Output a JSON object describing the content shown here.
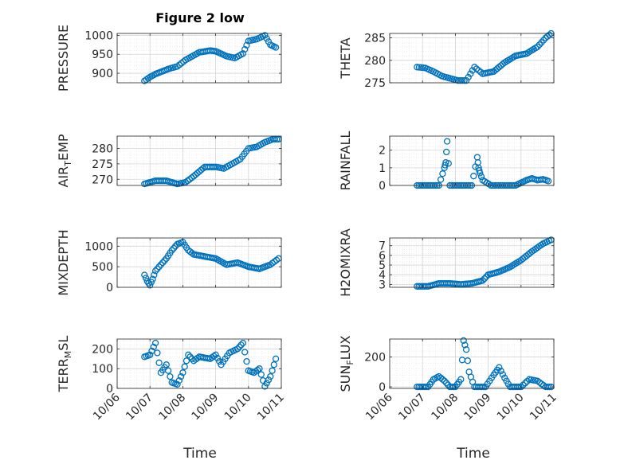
{
  "figure": {
    "title": "Figure 2 low",
    "xlabel": "Time",
    "marker_color": "#0072BD"
  },
  "chart_data": [
    {
      "type": "scatter",
      "ylabel": "PRESSURE",
      "ylim": [
        875,
        1005
      ],
      "yticks": [
        900,
        950,
        1000
      ],
      "ytick_labels": [
        "900",
        "950",
        "1000"
      ],
      "xlim": [
        "10/06",
        "10/11"
      ],
      "x": [
        "10/06 20:00",
        "10/07 00:00",
        "10/07 04:00",
        "10/07 09:00",
        "10/07 14:00",
        "10/07 20:00",
        "10/08 02:00",
        "10/08 12:00",
        "10/08 20:00",
        "10/09 00:00",
        "10/09 08:00",
        "10/09 14:00",
        "10/09 20:00",
        "10/10 00:00",
        "10/10 06:00",
        "10/10 12:00",
        "10/10 16:00",
        "10/10 20:00"
      ],
      "y": [
        880,
        890,
        898,
        905,
        912,
        918,
        935,
        955,
        960,
        958,
        945,
        940,
        952,
        985,
        990,
        1000,
        975,
        968
      ]
    },
    {
      "type": "scatter",
      "ylabel": "THETA",
      "ylim": [
        275,
        286
      ],
      "yticks": [
        275,
        280,
        285
      ],
      "ytick_labels": [
        "275",
        "280",
        "285"
      ],
      "xlim": [
        "10/06",
        "10/11"
      ],
      "x": [
        "10/06 20:00",
        "10/07 02:00",
        "10/07 08:00",
        "10/07 14:00",
        "10/07 20:00",
        "10/08 02:00",
        "10/08 08:00",
        "10/08 14:00",
        "10/08 20:00",
        "10/09 04:00",
        "10/09 12:00",
        "10/09 20:00",
        "10/10 04:00",
        "10/10 12:00",
        "10/10 18:00",
        "10/10 22:00"
      ],
      "y": [
        278.5,
        278.3,
        277.5,
        276.5,
        276,
        275.5,
        275.5,
        278.5,
        277,
        277.5,
        279.5,
        281,
        281.5,
        283,
        285,
        286
      ]
    },
    {
      "type": "scatter",
      "ylabel": "AIR_TEMP",
      "ylim": [
        268,
        284
      ],
      "yticks": [
        270,
        275,
        280
      ],
      "ytick_labels": [
        "270",
        "275",
        "280"
      ],
      "xlim": [
        "10/06",
        "10/11"
      ],
      "x": [
        "10/06 20:00",
        "10/07 04:00",
        "10/07 12:00",
        "10/07 20:00",
        "10/08 02:00",
        "10/08 08:00",
        "10/08 16:00",
        "10/09 00:00",
        "10/09 06:00",
        "10/09 12:00",
        "10/09 18:00",
        "10/10 00:00",
        "10/10 06:00",
        "10/10 12:00",
        "10/10 18:00",
        "10/10 22:00"
      ],
      "y": [
        268.5,
        269.5,
        269.5,
        268.5,
        269,
        271,
        274,
        274,
        273.5,
        275,
        276.5,
        280,
        280.5,
        282,
        283,
        283
      ]
    },
    {
      "type": "scatter",
      "ylabel": "RAINFALL",
      "ylim": [
        0,
        2.8
      ],
      "yticks": [
        0,
        1,
        2
      ],
      "ytick_labels": [
        "0",
        "1",
        "2"
      ],
      "xlim": [
        "10/06",
        "10/11"
      ],
      "x": [
        "10/06 20:00",
        "10/07 04:00",
        "10/07 12:00",
        "10/07 16:00",
        "10/07 17:00",
        "10/07 18:00",
        "10/07 20:00",
        "10/08 04:00",
        "10/08 12:00",
        "10/08 16:00",
        "10/08 17:00",
        "10/08 18:00",
        "10/08 20:00",
        "10/09 02:00",
        "10/09 12:00",
        "10/09 20:00",
        "10/10 04:00",
        "10/10 08:00",
        "10/10 12:00",
        "10/10 16:00",
        "10/10 20:00"
      ],
      "y": [
        0,
        0,
        0,
        1.0,
        1.3,
        2.5,
        0,
        0,
        0,
        1.6,
        1.0,
        0.7,
        0.3,
        0,
        0,
        0,
        0.3,
        0.4,
        0.3,
        0.35,
        0.25
      ]
    },
    {
      "type": "scatter",
      "ylabel": "MIXDEPTH",
      "ylim": [
        0,
        1200
      ],
      "yticks": [
        0,
        500,
        1000
      ],
      "ytick_labels": [
        "0",
        "500",
        "1000"
      ],
      "xlim": [
        "10/06",
        "10/11"
      ],
      "x": [
        "10/06 20:00",
        "10/06 22:00",
        "10/07 00:00",
        "10/07 02:00",
        "10/07 04:00",
        "10/07 08:00",
        "10/07 12:00",
        "10/07 16:00",
        "10/07 20:00",
        "10/08 00:00",
        "10/08 04:00",
        "10/08 08:00",
        "10/08 16:00",
        "10/09 00:00",
        "10/09 08:00",
        "10/09 16:00",
        "10/10 00:00",
        "10/10 08:00",
        "10/10 16:00",
        "10/10 22:00"
      ],
      "y": [
        300,
        150,
        50,
        200,
        400,
        550,
        700,
        900,
        1050,
        1100,
        900,
        800,
        750,
        700,
        550,
        600,
        500,
        450,
        550,
        700
      ]
    },
    {
      "type": "scatter",
      "ylabel": "H2OMIXRA",
      "ylim": [
        2.7,
        7.8
      ],
      "yticks": [
        3,
        4,
        5,
        6,
        7
      ],
      "ytick_labels": [
        "3",
        "4",
        "5",
        "6",
        "7"
      ],
      "xlim": [
        "10/06",
        "10/11"
      ],
      "x": [
        "10/06 20:00",
        "10/07 04:00",
        "10/07 12:00",
        "10/07 20:00",
        "10/08 04:00",
        "10/08 12:00",
        "10/08 20:00",
        "10/09 00:00",
        "10/09 08:00",
        "10/09 16:00",
        "10/10 00:00",
        "10/10 08:00",
        "10/10 16:00",
        "10/10 22:00"
      ],
      "y": [
        2.8,
        2.8,
        3.1,
        3.1,
        3.0,
        3.1,
        3.4,
        4.0,
        4.3,
        4.8,
        5.5,
        6.4,
        7.2,
        7.6
      ]
    },
    {
      "type": "scatter",
      "ylabel": "TERR_MSL",
      "ylim": [
        0,
        250
      ],
      "yticks": [
        0,
        100,
        200
      ],
      "ytick_labels": [
        "0",
        "100",
        "200"
      ],
      "xlim": [
        "10/06",
        "10/11"
      ],
      "x": [
        "10/06 20:00",
        "10/07 00:00",
        "10/07 04:00",
        "10/07 08:00",
        "10/07 12:00",
        "10/07 16:00",
        "10/07 20:00",
        "10/08 00:00",
        "10/08 04:00",
        "10/08 08:00",
        "10/08 12:00",
        "10/08 20:00",
        "10/09 00:00",
        "10/09 04:00",
        "10/09 10:00",
        "10/09 16:00",
        "10/09 20:00",
        "10/10 00:00",
        "10/10 04:00",
        "10/10 08:00",
        "10/10 12:00",
        "10/10 16:00",
        "10/10 20:00"
      ],
      "y": [
        160,
        170,
        230,
        80,
        120,
        30,
        20,
        80,
        170,
        140,
        160,
        150,
        170,
        120,
        180,
        200,
        230,
        90,
        80,
        100,
        10,
        60,
        150
      ]
    },
    {
      "type": "scatter",
      "ylabel": "SUN_FLUX",
      "ylim": [
        -10,
        320
      ],
      "yticks": [
        0,
        200
      ],
      "ytick_labels": [
        "0",
        "200"
      ],
      "xlim": [
        "10/06",
        "10/11"
      ],
      "x": [
        "10/06 20:00",
        "10/07 04:00",
        "10/07 08:00",
        "10/07 12:00",
        "10/07 16:00",
        "10/07 20:00",
        "10/08 00:00",
        "10/08 04:00",
        "10/08 06:00",
        "10/08 08:00",
        "10/08 10:00",
        "10/08 14:00",
        "10/08 18:00",
        "10/08 22:00",
        "10/09 04:00",
        "10/09 08:00",
        "10/09 12:00",
        "10/09 16:00",
        "10/09 20:00",
        "10/10 00:00",
        "10/10 06:00",
        "10/10 12:00",
        "10/10 18:00",
        "10/10 22:00"
      ],
      "y": [
        0,
        0,
        50,
        70,
        40,
        0,
        0,
        50,
        310,
        250,
        100,
        0,
        0,
        0,
        80,
        130,
        60,
        0,
        0,
        0,
        50,
        40,
        0,
        0
      ]
    }
  ],
  "xtick_labels": [
    "10/06",
    "10/07",
    "10/08",
    "10/09",
    "10/10",
    "10/11"
  ]
}
